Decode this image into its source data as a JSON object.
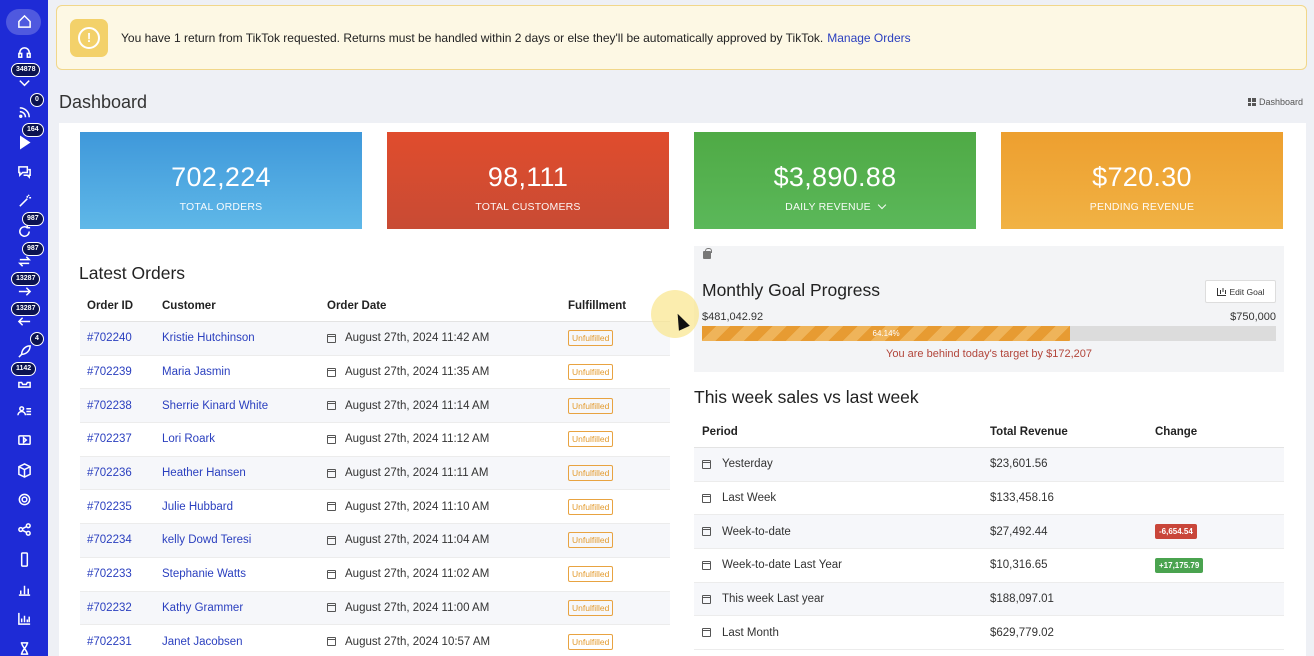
{
  "banner": {
    "message": "You have 1 return from TikTok requested. Returns must be handled within 2 days or else they'll be automatically approved by TikTok.",
    "link": "Manage Orders",
    "icon": "alert-icon",
    "accent": "#f3d16a"
  },
  "sidebar": {
    "bg": "#1e2bd6",
    "items": [
      {
        "icon": "home-icon",
        "badge": ""
      },
      {
        "icon": "headset-icon",
        "badge": ""
      },
      {
        "icon": "chevron-down-icon",
        "badge": "34878"
      },
      {
        "icon": "rss-icon",
        "badge": "0"
      },
      {
        "icon": "play-icon",
        "badge": "164"
      },
      {
        "icon": "chat-icon",
        "badge": ""
      },
      {
        "icon": "magic-wand-icon",
        "badge": ""
      },
      {
        "icon": "refresh-icon",
        "badge": "987"
      },
      {
        "icon": "sync-icon",
        "badge": "987"
      },
      {
        "icon": "arrow-right-icon",
        "badge": "13287"
      },
      {
        "icon": "arrow-left-icon",
        "badge": "13287"
      },
      {
        "icon": "rocket-icon",
        "badge": "4"
      },
      {
        "icon": "inbox-icon",
        "badge": "1142"
      },
      {
        "icon": "users-list-icon",
        "badge": ""
      },
      {
        "icon": "video-icon",
        "badge": ""
      },
      {
        "icon": "box-icon",
        "badge": ""
      },
      {
        "icon": "gear-icon",
        "badge": ""
      },
      {
        "icon": "share-icon",
        "badge": ""
      },
      {
        "icon": "mobile-icon",
        "badge": ""
      },
      {
        "icon": "bar-chart-icon",
        "badge": ""
      },
      {
        "icon": "analytics-icon",
        "badge": ""
      },
      {
        "icon": "hourglass-icon",
        "badge": ""
      }
    ]
  },
  "header": {
    "title": "Dashboard",
    "breadcrumb": "Dashboard"
  },
  "stats": [
    {
      "value": "702,224",
      "label": "TOTAL ORDERS"
    },
    {
      "value": "98,111",
      "label": "TOTAL CUSTOMERS"
    },
    {
      "value": "$3,890.88",
      "label": "DAILY REVENUE"
    },
    {
      "value": "$720.30",
      "label": "PENDING REVENUE"
    }
  ],
  "orders": {
    "title": "Latest Orders",
    "columns": [
      "Order ID",
      "Customer",
      "Order Date",
      "Fulfillment"
    ],
    "rows": [
      {
        "id": "#702240",
        "customer": "Kristie Hutchinson",
        "date": "August 27th, 2024 11:42 AM",
        "status": "Unfulfilled"
      },
      {
        "id": "#702239",
        "customer": "Maria Jasmin",
        "date": "August 27th, 2024 11:35 AM",
        "status": "Unfulfilled"
      },
      {
        "id": "#702238",
        "customer": "Sherrie Kinard White",
        "date": "August 27th, 2024 11:14 AM",
        "status": "Unfulfilled"
      },
      {
        "id": "#702237",
        "customer": "Lori Roark",
        "date": "August 27th, 2024 11:12 AM",
        "status": "Unfulfilled"
      },
      {
        "id": "#702236",
        "customer": "Heather Hansen",
        "date": "August 27th, 2024 11:11 AM",
        "status": "Unfulfilled"
      },
      {
        "id": "#702235",
        "customer": "Julie Hubbard",
        "date": "August 27th, 2024 11:10 AM",
        "status": "Unfulfilled"
      },
      {
        "id": "#702234",
        "customer": "kelly Dowd Teresi",
        "date": "August 27th, 2024 11:04 AM",
        "status": "Unfulfilled"
      },
      {
        "id": "#702233",
        "customer": "Stephanie Watts",
        "date": "August 27th, 2024 11:02 AM",
        "status": "Unfulfilled"
      },
      {
        "id": "#702232",
        "customer": "Kathy Grammer",
        "date": "August 27th, 2024 11:00 AM",
        "status": "Unfulfilled"
      },
      {
        "id": "#702231",
        "customer": "Janet Jacobsen",
        "date": "August 27th, 2024 10:57 AM",
        "status": "Unfulfilled"
      }
    ]
  },
  "goal": {
    "title": "Monthly Goal Progress",
    "edit_label": "Edit Goal",
    "current": "$481,042.92",
    "target": "$750,000",
    "percent_label": "64.14%",
    "progress": 0.6414,
    "note": "You are behind today's target by $172,207"
  },
  "week": {
    "title": "This week sales vs last week",
    "columns": [
      "Period",
      "Total Revenue",
      "Change"
    ],
    "rows": [
      {
        "period": "Yesterday",
        "revenue": "$23,601.56",
        "change": "",
        "dir": ""
      },
      {
        "period": "Last Week",
        "revenue": "$133,458.16",
        "change": "",
        "dir": ""
      },
      {
        "period": "Week-to-date",
        "revenue": "$27,492.44",
        "change": "-6,654.54",
        "dir": "neg"
      },
      {
        "period": "Week-to-date Last Year",
        "revenue": "$10,316.65",
        "change": "+17,175.79",
        "dir": "pos"
      },
      {
        "period": "This week Last year",
        "revenue": "$188,097.01",
        "change": "",
        "dir": ""
      },
      {
        "period": "Last Month",
        "revenue": "$629,779.02",
        "change": "",
        "dir": ""
      }
    ]
  }
}
